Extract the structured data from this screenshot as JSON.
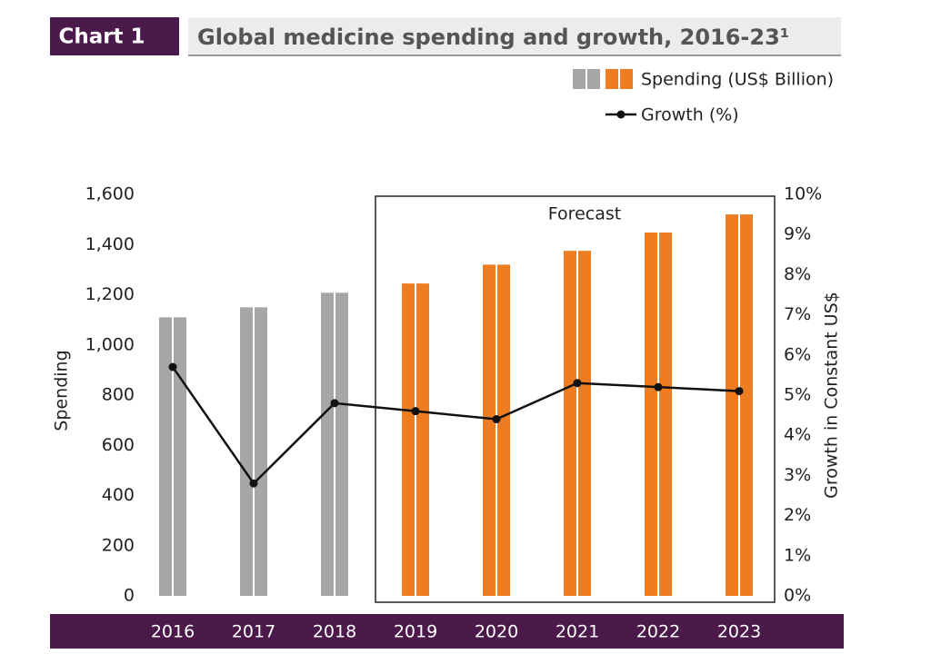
{
  "chart_data": {
    "type": "bar_line",
    "label": "Chart 1",
    "title": "Global medicine spending and growth, 2016-23¹",
    "annotation": "Forecast",
    "y_label": "Spending",
    "y2_label": "Growth in Constant US$",
    "categories": [
      "2016",
      "2017",
      "2018",
      "2019",
      "2020",
      "2021",
      "2022",
      "2023"
    ],
    "series": [
      {
        "name": "Spending (US$ Billion)",
        "type": "bar",
        "color": "#ee7d22",
        "colors": [
          "#a6a6a6",
          "#a6a6a6",
          "#a6a6a6",
          "#ee7d22",
          "#ee7d22",
          "#ee7d22",
          "#ee7d22",
          "#ee7d22"
        ],
        "values": [
          1110,
          1150,
          1208,
          1245,
          1320,
          1375,
          1448,
          1520
        ]
      },
      {
        "name": "Growth (%)",
        "type": "line",
        "axis": "y2",
        "color": "#111111",
        "values": [
          5.7,
          2.8,
          4.8,
          4.6,
          4.4,
          5.3,
          5.2,
          5.1
        ]
      }
    ],
    "ylim": [
      0,
      1600
    ],
    "yticks": [
      0,
      200,
      400,
      600,
      800,
      {
        "value": 1000,
        "label": "1,000"
      },
      {
        "value": 1200,
        "label": "1,200"
      },
      {
        "value": 1400,
        "label": "1,400"
      },
      {
        "value": 1600,
        "label": "1,600"
      }
    ],
    "y2lim": [
      0,
      10
    ],
    "y2ticks": [
      {
        "value": 0,
        "label": "0%"
      },
      {
        "value": 1,
        "label": "1%"
      },
      {
        "value": 2,
        "label": "2%"
      },
      {
        "value": 3,
        "label": "3%"
      },
      {
        "value": 4,
        "label": "4%"
      },
      {
        "value": 5,
        "label": "5%"
      },
      {
        "value": 6,
        "label": "6%"
      },
      {
        "value": 7,
        "label": "7%"
      },
      {
        "value": 8,
        "label": "8%"
      },
      {
        "value": 9,
        "label": "9%"
      },
      {
        "value": 10,
        "label": "10%"
      }
    ]
  }
}
